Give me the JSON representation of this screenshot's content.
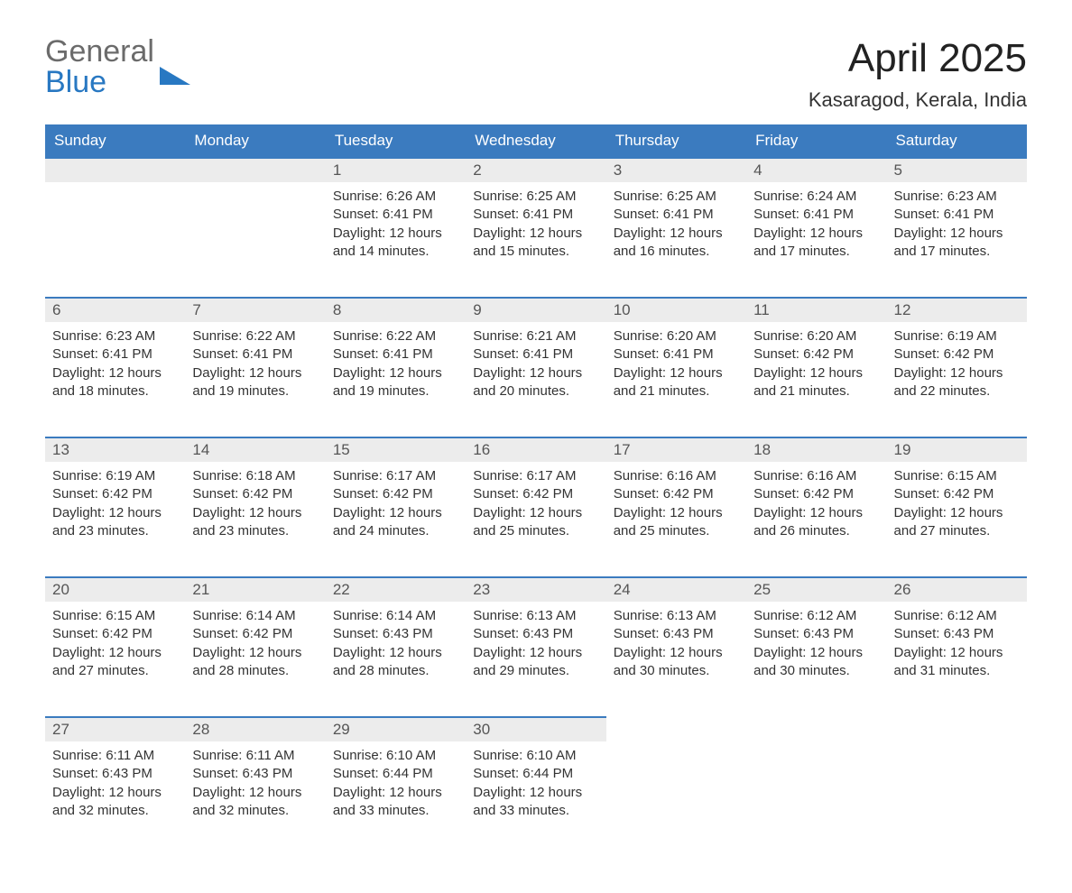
{
  "logo": {
    "text_gray": "General",
    "text_blue": "Blue",
    "triangle_color": "#2878c2"
  },
  "title": "April 2025",
  "location": "Kasaragod, Kerala, India",
  "colors": {
    "header_bg": "#3b7bbf",
    "header_text": "#ffffff",
    "daynum_bg": "#ececec",
    "daynum_border": "#3b7bbf",
    "body_bg": "#ffffff",
    "text": "#333333"
  },
  "day_names": [
    "Sunday",
    "Monday",
    "Tuesday",
    "Wednesday",
    "Thursday",
    "Friday",
    "Saturday"
  ],
  "weeks": [
    [
      null,
      null,
      {
        "n": "1",
        "sunrise": "6:26 AM",
        "sunset": "6:41 PM",
        "daylight": "12 hours and 14 minutes."
      },
      {
        "n": "2",
        "sunrise": "6:25 AM",
        "sunset": "6:41 PM",
        "daylight": "12 hours and 15 minutes."
      },
      {
        "n": "3",
        "sunrise": "6:25 AM",
        "sunset": "6:41 PM",
        "daylight": "12 hours and 16 minutes."
      },
      {
        "n": "4",
        "sunrise": "6:24 AM",
        "sunset": "6:41 PM",
        "daylight": "12 hours and 17 minutes."
      },
      {
        "n": "5",
        "sunrise": "6:23 AM",
        "sunset": "6:41 PM",
        "daylight": "12 hours and 17 minutes."
      }
    ],
    [
      {
        "n": "6",
        "sunrise": "6:23 AM",
        "sunset": "6:41 PM",
        "daylight": "12 hours and 18 minutes."
      },
      {
        "n": "7",
        "sunrise": "6:22 AM",
        "sunset": "6:41 PM",
        "daylight": "12 hours and 19 minutes."
      },
      {
        "n": "8",
        "sunrise": "6:22 AM",
        "sunset": "6:41 PM",
        "daylight": "12 hours and 19 minutes."
      },
      {
        "n": "9",
        "sunrise": "6:21 AM",
        "sunset": "6:41 PM",
        "daylight": "12 hours and 20 minutes."
      },
      {
        "n": "10",
        "sunrise": "6:20 AM",
        "sunset": "6:41 PM",
        "daylight": "12 hours and 21 minutes."
      },
      {
        "n": "11",
        "sunrise": "6:20 AM",
        "sunset": "6:42 PM",
        "daylight": "12 hours and 21 minutes."
      },
      {
        "n": "12",
        "sunrise": "6:19 AM",
        "sunset": "6:42 PM",
        "daylight": "12 hours and 22 minutes."
      }
    ],
    [
      {
        "n": "13",
        "sunrise": "6:19 AM",
        "sunset": "6:42 PM",
        "daylight": "12 hours and 23 minutes."
      },
      {
        "n": "14",
        "sunrise": "6:18 AM",
        "sunset": "6:42 PM",
        "daylight": "12 hours and 23 minutes."
      },
      {
        "n": "15",
        "sunrise": "6:17 AM",
        "sunset": "6:42 PM",
        "daylight": "12 hours and 24 minutes."
      },
      {
        "n": "16",
        "sunrise": "6:17 AM",
        "sunset": "6:42 PM",
        "daylight": "12 hours and 25 minutes."
      },
      {
        "n": "17",
        "sunrise": "6:16 AM",
        "sunset": "6:42 PM",
        "daylight": "12 hours and 25 minutes."
      },
      {
        "n": "18",
        "sunrise": "6:16 AM",
        "sunset": "6:42 PM",
        "daylight": "12 hours and 26 minutes."
      },
      {
        "n": "19",
        "sunrise": "6:15 AM",
        "sunset": "6:42 PM",
        "daylight": "12 hours and 27 minutes."
      }
    ],
    [
      {
        "n": "20",
        "sunrise": "6:15 AM",
        "sunset": "6:42 PM",
        "daylight": "12 hours and 27 minutes."
      },
      {
        "n": "21",
        "sunrise": "6:14 AM",
        "sunset": "6:42 PM",
        "daylight": "12 hours and 28 minutes."
      },
      {
        "n": "22",
        "sunrise": "6:14 AM",
        "sunset": "6:43 PM",
        "daylight": "12 hours and 28 minutes."
      },
      {
        "n": "23",
        "sunrise": "6:13 AM",
        "sunset": "6:43 PM",
        "daylight": "12 hours and 29 minutes."
      },
      {
        "n": "24",
        "sunrise": "6:13 AM",
        "sunset": "6:43 PM",
        "daylight": "12 hours and 30 minutes."
      },
      {
        "n": "25",
        "sunrise": "6:12 AM",
        "sunset": "6:43 PM",
        "daylight": "12 hours and 30 minutes."
      },
      {
        "n": "26",
        "sunrise": "6:12 AM",
        "sunset": "6:43 PM",
        "daylight": "12 hours and 31 minutes."
      }
    ],
    [
      {
        "n": "27",
        "sunrise": "6:11 AM",
        "sunset": "6:43 PM",
        "daylight": "12 hours and 32 minutes."
      },
      {
        "n": "28",
        "sunrise": "6:11 AM",
        "sunset": "6:43 PM",
        "daylight": "12 hours and 32 minutes."
      },
      {
        "n": "29",
        "sunrise": "6:10 AM",
        "sunset": "6:44 PM",
        "daylight": "12 hours and 33 minutes."
      },
      {
        "n": "30",
        "sunrise": "6:10 AM",
        "sunset": "6:44 PM",
        "daylight": "12 hours and 33 minutes."
      },
      null,
      null,
      null
    ]
  ],
  "labels": {
    "sunrise": "Sunrise: ",
    "sunset": "Sunset: ",
    "daylight": "Daylight: "
  }
}
